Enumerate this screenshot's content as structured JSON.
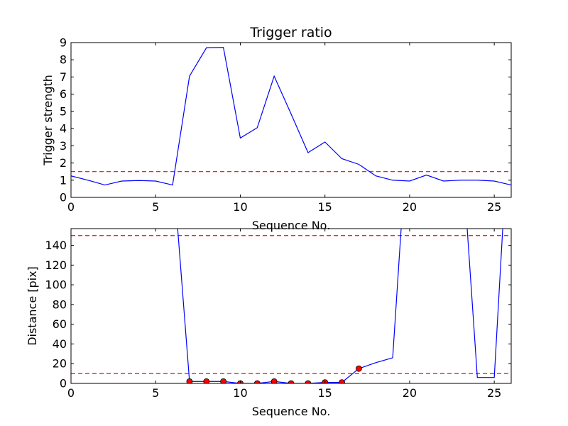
{
  "chart_data": [
    {
      "type": "line",
      "title": "Trigger ratio",
      "xlabel": "Sequence No.",
      "ylabel": "Trigger strength",
      "xlim": [
        0,
        26
      ],
      "ylim": [
        0,
        9
      ],
      "xticks": [
        0,
        5,
        10,
        15,
        20,
        25
      ],
      "yticks": [
        0,
        1,
        2,
        3,
        4,
        5,
        6,
        7,
        8,
        9
      ],
      "grid": false,
      "series": [
        {
          "color": "#0000ff",
          "x": [
            0,
            1,
            2,
            3,
            4,
            5,
            6,
            7,
            8,
            9,
            10,
            11,
            12,
            13,
            14,
            15,
            16,
            17,
            18,
            19,
            20,
            21,
            22,
            23,
            24,
            25,
            26
          ],
          "y": [
            1.25,
            1.0,
            0.72,
            0.95,
            0.98,
            0.95,
            0.72,
            7.05,
            8.7,
            8.72,
            3.45,
            4.05,
            7.05,
            4.85,
            2.6,
            3.22,
            2.25,
            1.92,
            1.25,
            1.0,
            0.95,
            1.3,
            0.95,
            1.0,
            1.0,
            0.95,
            0.72
          ]
        }
      ],
      "hlines": [
        {
          "y": 1.5,
          "color": "#ff0000",
          "style": "dashed"
        }
      ]
    },
    {
      "type": "line",
      "title": "",
      "xlabel": "Sequence No.",
      "ylabel": "Distance [pix]",
      "xlim": [
        0,
        26
      ],
      "ylim": [
        0,
        157
      ],
      "xticks": [
        0,
        5,
        10,
        15,
        20,
        25
      ],
      "yticks": [
        0,
        20,
        40,
        60,
        80,
        100,
        120,
        140
      ],
      "grid": false,
      "series": [
        {
          "color": "#0000ff",
          "x": [
            6.3,
            7,
            8,
            9,
            10,
            11,
            12,
            13,
            14,
            15,
            16,
            17,
            18,
            19,
            19.5
          ],
          "y": [
            157,
            2,
            2,
            2,
            0,
            0,
            2,
            0,
            0,
            1,
            1,
            15,
            21,
            26,
            157
          ]
        },
        {
          "color": "#0000ff",
          "x": [
            23.4,
            24,
            25,
            25.5
          ],
          "y": [
            157,
            6,
            6,
            157
          ]
        }
      ],
      "markers": {
        "color": "#ff0000",
        "x": [
          7,
          8,
          9,
          10,
          11,
          12,
          13,
          14,
          15,
          16,
          17
        ],
        "y": [
          2,
          2,
          2,
          0,
          0,
          2,
          0,
          0,
          1,
          1,
          15
        ]
      },
      "hlines": [
        {
          "y": 150,
          "color": "#ff0000",
          "style": "dashed"
        },
        {
          "y": 10,
          "color": "#ff0000",
          "style": "dashed"
        }
      ]
    }
  ]
}
